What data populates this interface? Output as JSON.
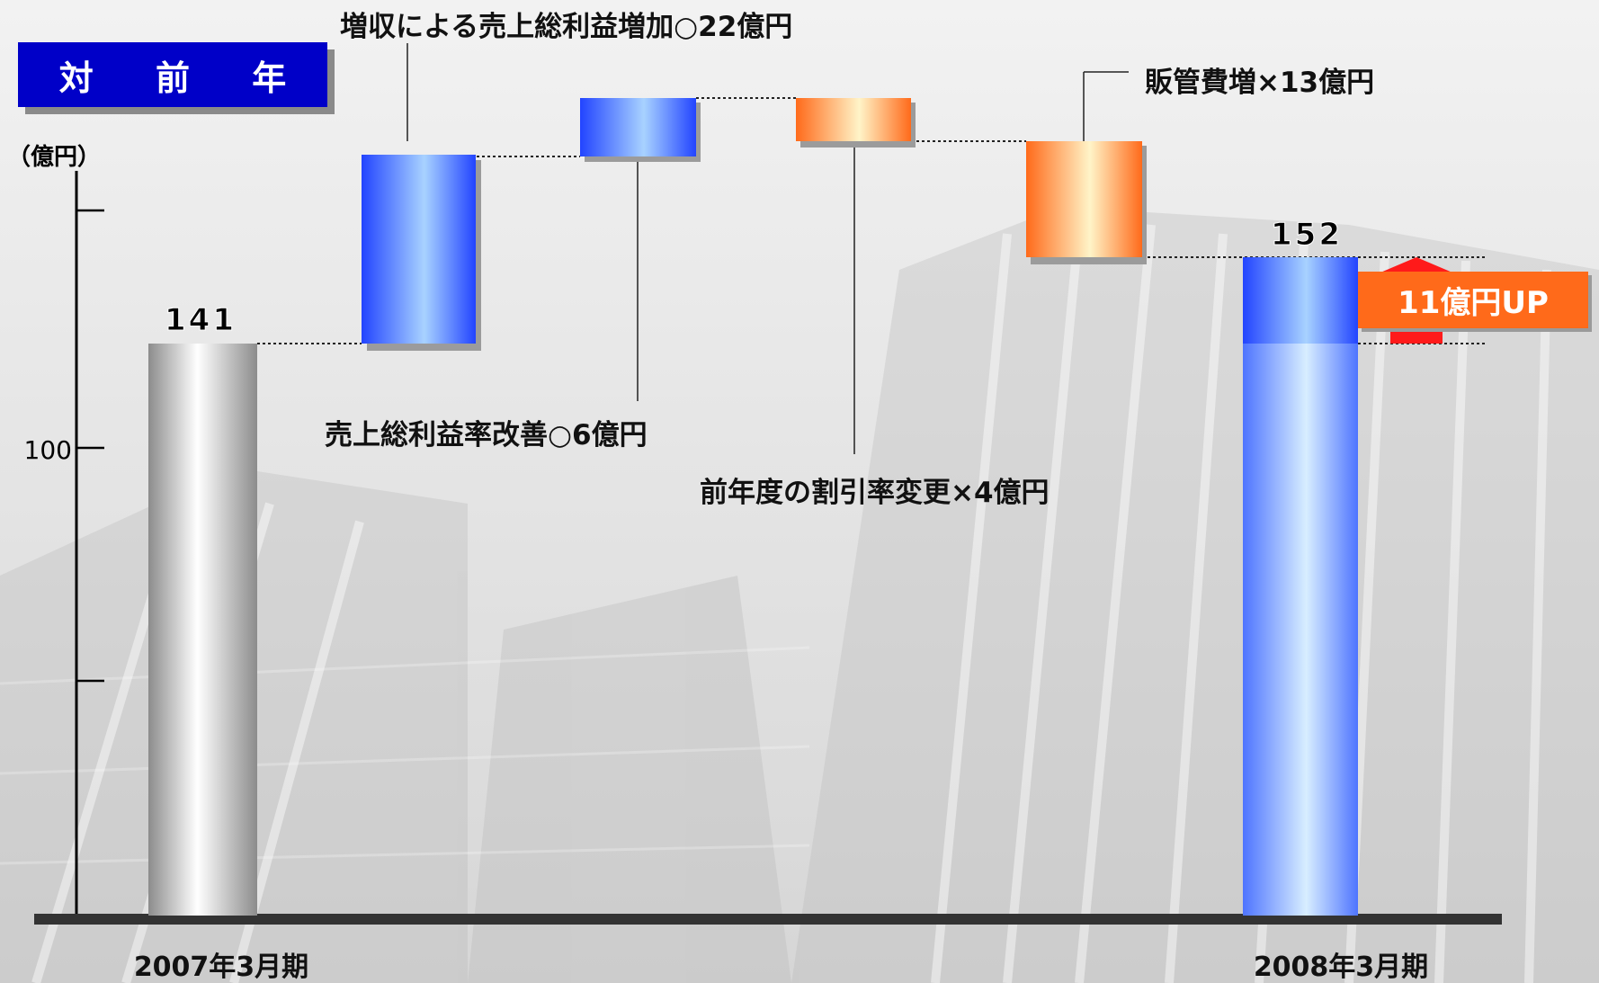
{
  "header": {
    "badge_label": "対 前 年"
  },
  "chart_data": {
    "type": "bar",
    "subtype": "waterfall",
    "unit_label": "（億円）",
    "y_tick_labels": [
      "100"
    ],
    "categories": [
      "2007年3月期",
      "2008年3月期"
    ],
    "start": {
      "category": "2007年3月期",
      "value": 141,
      "label": "141"
    },
    "end": {
      "category": "2008年3月期",
      "value": 152,
      "label": "152"
    },
    "steps": [
      {
        "label": "増収による売上総利益増加○22億円",
        "delta": 22,
        "color": "#3050ff"
      },
      {
        "label": "売上総利益率改善○6億円",
        "delta": 6,
        "color": "#3050ff"
      },
      {
        "label": "前年度の割引率変更×4億円",
        "delta": -4,
        "color": "#ff7a2a"
      },
      {
        "label": "販管費増×13億円",
        "delta": -13,
        "color": "#ff7a2a"
      }
    ],
    "change_label": "11億円UP",
    "colors": {
      "increase": "#3050ff",
      "decrease": "#ff7a2a",
      "start": "#9a9a9a",
      "accent": "#ff6a1a"
    }
  }
}
